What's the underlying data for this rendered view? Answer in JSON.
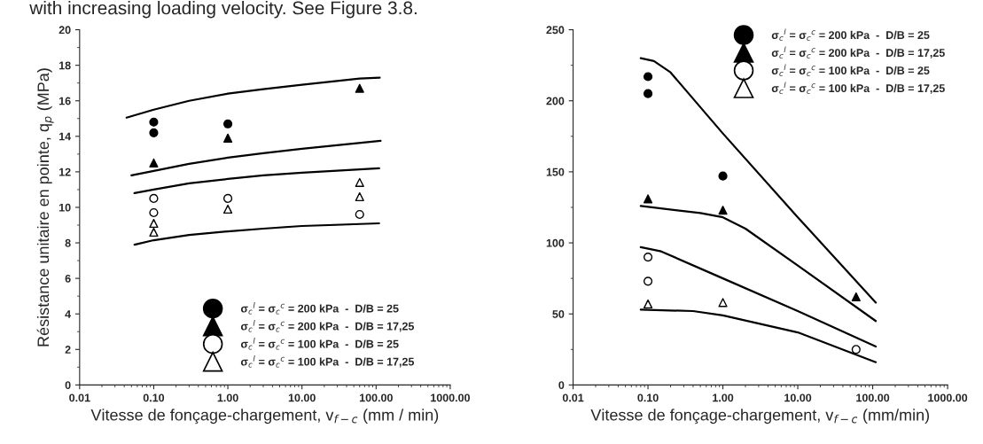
{
  "chart_data": [
    {
      "type": "scatter",
      "annotations": [
        "with increasing loading velocity. See Figure 3.8."
      ],
      "xlabel": "Vitesse de fonçage-chargement, v$_{f−c}$ (mm / min)",
      "ylabel": "Résistance unitaire en pointe, q$_{p}$ (MPa)",
      "log": "x",
      "xlim": [
        0.01,
        1000
      ],
      "xticks": [
        0.01,
        {
          "value": 0.1,
          "label": "0.10"
        },
        {
          "value": 1,
          "label": "1.00"
        },
        {
          "value": 10,
          "label": "10.00"
        },
        {
          "value": 100,
          "label": "100.00"
        },
        {
          "value": 1000,
          "label": "1000.00"
        }
      ],
      "ylim": [
        0,
        20
      ],
      "yticks": [
        0,
        2,
        4,
        6,
        8,
        10,
        12,
        14,
        16,
        18,
        20
      ],
      "grid": false,
      "legend": "bottom right",
      "series": [
        {
          "name": "σ$_{c}$$^{l}$ = σ$_{c}$$^{c}$ = 200 kPa  -  D/B = 25",
          "marker": "circle",
          "color": "#000000",
          "x": [
            0.1,
            0.1,
            1
          ],
          "values": [
            14.8,
            14.2,
            14.7
          ]
        },
        {
          "name": "σ$_{c}$$^{l}$ = σ$_{c}$$^{c}$ = 200 kPa  -  D/B = 17,25",
          "marker": "triangle",
          "color": "#000000",
          "x": [
            0.1,
            1,
            60
          ],
          "values": [
            12.5,
            13.9,
            16.7
          ]
        },
        {
          "name": "σ$_{c}$$^{l}$ = σ$_{c}$$^{c}$ = 100 kPa  -  D/B = 25",
          "marker": "circle",
          "color": "#ffffff",
          "x": [
            0.1,
            0.1,
            1,
            60
          ],
          "values": [
            10.5,
            9.7,
            10.5,
            9.6
          ]
        },
        {
          "name": "σ$_{c}$$^{l}$ = σ$_{c}$$^{c}$ = 100 kPa  -  D/B = 17,25",
          "marker": "triangle",
          "color": "#ffffff",
          "x": [
            0.1,
            0.1,
            1,
            60,
            60
          ],
          "values": [
            9.1,
            8.6,
            9.9,
            11.4,
            10.6
          ]
        },
        {
          "type": "line",
          "color": "#000000",
          "x": [
            0.043,
            0.1,
            0.3,
            1,
            3,
            10,
            60,
            112
          ],
          "values": [
            15.05,
            15.5,
            16.0,
            16.4,
            16.65,
            16.9,
            17.25,
            17.3
          ]
        },
        {
          "type": "line",
          "color": "#000000",
          "x": [
            0.05,
            0.1,
            0.3,
            1,
            3,
            10,
            115
          ],
          "values": [
            11.8,
            12.05,
            12.45,
            12.8,
            13.05,
            13.3,
            13.75
          ]
        },
        {
          "type": "line",
          "color": "#000000",
          "x": [
            0.055,
            0.1,
            0.3,
            1,
            3,
            10,
            110
          ],
          "values": [
            10.8,
            11.0,
            11.35,
            11.6,
            11.8,
            11.95,
            12.2
          ]
        },
        {
          "type": "line",
          "color": "#000000",
          "x": [
            0.055,
            0.1,
            0.3,
            1,
            3,
            10,
            110
          ],
          "values": [
            7.9,
            8.15,
            8.45,
            8.65,
            8.8,
            8.95,
            9.1
          ]
        }
      ]
    },
    {
      "type": "scatter",
      "xlabel": "Vitesse de fonçage-chargement, v$_{f−c}$ (mm/min)",
      "log": "x",
      "xlim": [
        0.01,
        1000
      ],
      "xticks": [
        0.01,
        {
          "value": 0.1,
          "label": "0.10"
        },
        {
          "value": 1,
          "label": "1.00"
        },
        {
          "value": 10,
          "label": "10.00"
        },
        {
          "value": 100,
          "label": "100.00"
        },
        {
          "value": 1000,
          "label": "1000.00"
        }
      ],
      "ylim": [
        0,
        250
      ],
      "yticks": [
        0,
        50,
        100,
        150,
        200,
        250
      ],
      "grid": false,
      "legend": "top right",
      "series": [
        {
          "name": "σ$_{c}$$^{l}$ = σ$_{c}$$^{c}$ = 200 kPa  -  D/B = 25",
          "marker": "circle",
          "color": "#000000",
          "x": [
            0.1,
            0.1,
            1
          ],
          "values": [
            217,
            205,
            147
          ]
        },
        {
          "name": "σ$_{c}$$^{l}$ = σ$_{c}$$^{c}$ = 200 kPa  -  D/B = 17,25",
          "marker": "triangle",
          "color": "#000000",
          "x": [
            0.1,
            1,
            60
          ],
          "values": [
            131,
            123,
            62
          ]
        },
        {
          "name": "σ$_{c}$$^{l}$ = σ$_{c}$$^{c}$ = 100 kPa  -  D/B = 25",
          "marker": "circle",
          "color": "#ffffff",
          "x": [
            0.1,
            0.1,
            60
          ],
          "values": [
            90,
            73,
            25
          ]
        },
        {
          "name": "σ$_{c}$$^{l}$ = σ$_{c}$$^{c}$ = 100 kPa  -  D/B = 17,25",
          "marker": "triangle",
          "color": "#ffffff",
          "x": [
            0.1,
            1
          ],
          "values": [
            57,
            58
          ]
        },
        {
          "type": "line",
          "color": "#000000",
          "x": [
            0.08,
            0.12,
            0.2,
            1,
            10,
            110
          ],
          "values": [
            230,
            228,
            220,
            177,
            118,
            58
          ]
        },
        {
          "type": "line",
          "color": "#000000",
          "x": [
            0.08,
            0.5,
            1,
            2,
            10,
            110
          ],
          "values": [
            126,
            121,
            118,
            110,
            84,
            45
          ]
        },
        {
          "type": "line",
          "color": "#000000",
          "x": [
            0.08,
            0.15,
            1,
            10,
            110
          ],
          "values": [
            97,
            94,
            75,
            52,
            27
          ]
        },
        {
          "type": "line",
          "color": "#000000",
          "x": [
            0.08,
            0.4,
            1,
            10,
            110
          ],
          "values": [
            53,
            52,
            49,
            37,
            16
          ]
        }
      ]
    }
  ]
}
